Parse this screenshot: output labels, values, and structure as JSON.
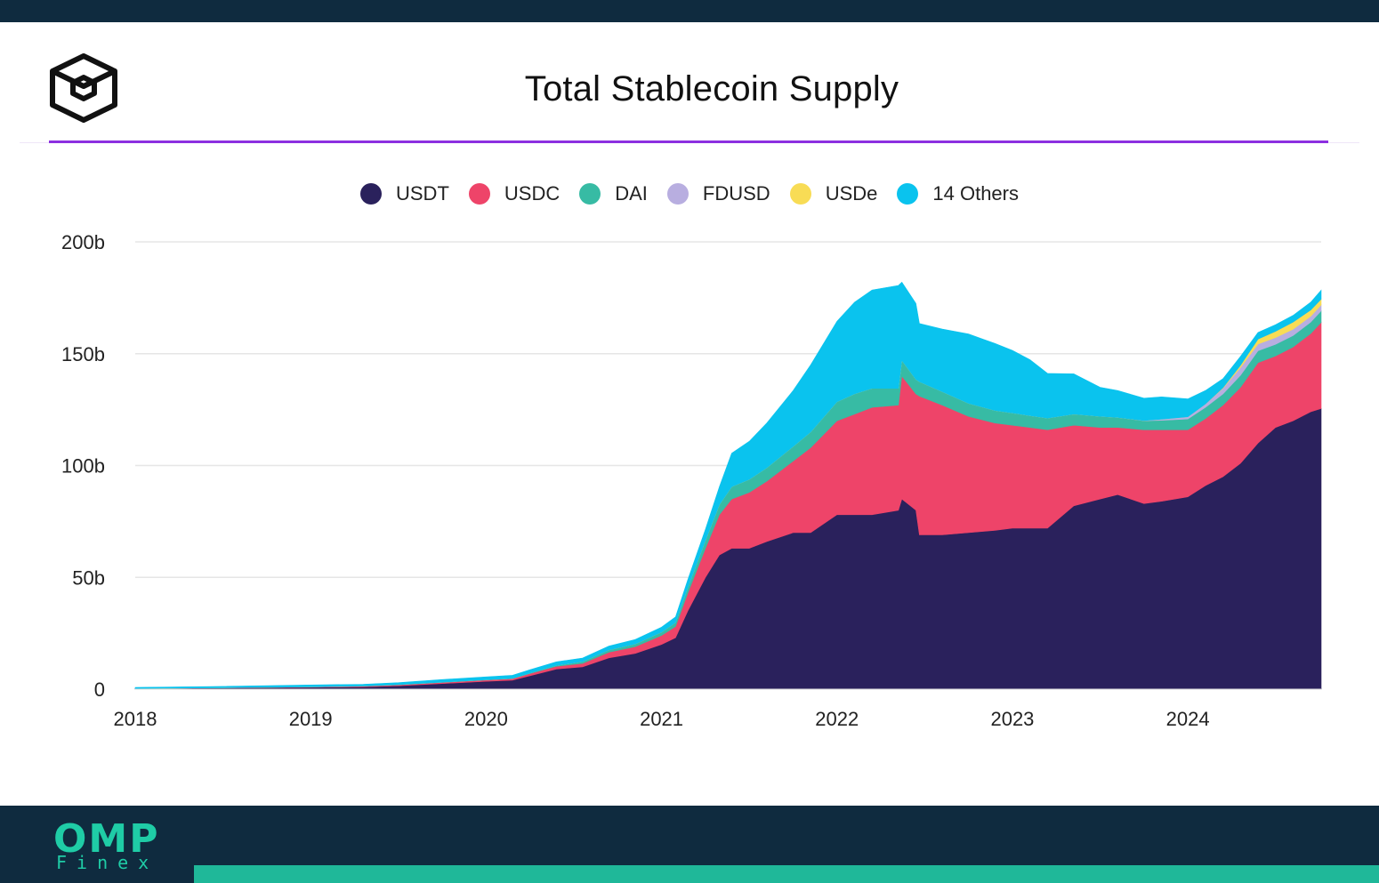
{
  "header": {
    "title": "Total Stablecoin Supply",
    "logo_icon": "cube-logo-icon"
  },
  "colors": {
    "USDT": "#2a215c",
    "USDC": "#ee4469",
    "DAI": "#37bba4",
    "FDUSD": "#b8aee0",
    "USDe": "#f8dc55",
    "14 Others": "#0ac3ee",
    "accent": "#8c2fe0",
    "footer_bg": "#0f2b3f",
    "footer_accent": "#1fb899"
  },
  "legend": [
    {
      "label": "USDT",
      "color": "#2a215c"
    },
    {
      "label": "USDC",
      "color": "#ee4469"
    },
    {
      "label": "DAI",
      "color": "#37bba4"
    },
    {
      "label": "FDUSD",
      "color": "#b8aee0"
    },
    {
      "label": "USDe",
      "color": "#f8dc55"
    },
    {
      "label": "14 Others",
      "color": "#0ac3ee"
    }
  ],
  "chart_data": {
    "type": "area",
    "title": "Total Stablecoin Supply",
    "stacked": true,
    "xlabel": "",
    "ylabel": "",
    "xlim": [
      2018.0,
      2024.76
    ],
    "ylim": [
      0,
      200
    ],
    "y_unit": "b (billions USD)",
    "x_ticks": [
      2018,
      2019,
      2020,
      2021,
      2022,
      2023,
      2024
    ],
    "x_tick_labels": [
      "2018",
      "2019",
      "2020",
      "2021",
      "2022",
      "2023",
      "2024"
    ],
    "y_ticks": [
      0,
      50,
      100,
      150,
      200
    ],
    "y_tick_labels": [
      "0",
      "50b",
      "100b",
      "150b",
      "200b"
    ],
    "grid": true,
    "legend_position": "top-center",
    "x": [
      2018.0,
      2018.5,
      2019.0,
      2019.3,
      2019.5,
      2019.75,
      2020.0,
      2020.15,
      2020.25,
      2020.4,
      2020.55,
      2020.7,
      2020.85,
      2021.0,
      2021.08,
      2021.15,
      2021.25,
      2021.33,
      2021.4,
      2021.5,
      2021.6,
      2021.75,
      2021.85,
      2022.0,
      2022.1,
      2022.2,
      2022.35,
      2022.37,
      2022.45,
      2022.47,
      2022.6,
      2022.75,
      2022.9,
      2023.0,
      2023.1,
      2023.2,
      2023.35,
      2023.5,
      2023.6,
      2023.75,
      2023.85,
      2024.0,
      2024.1,
      2024.2,
      2024.3,
      2024.4,
      2024.5,
      2024.6,
      2024.7,
      2024.76
    ],
    "series": [
      {
        "name": "USDT",
        "values": [
          0.3,
          0.5,
          0.8,
          1.0,
          1.5,
          2.5,
          3.5,
          4.0,
          6.0,
          9.0,
          10.0,
          14.0,
          16.0,
          20.0,
          23.0,
          35.0,
          50.0,
          60.0,
          63.0,
          63.0,
          66.0,
          70.0,
          70.0,
          78.0,
          78.0,
          78.0,
          80.0,
          85.0,
          80.0,
          69.0,
          69.0,
          70.0,
          71.0,
          72.0,
          72.0,
          72.0,
          82.0,
          85.0,
          87.0,
          83.0,
          84.0,
          86.0,
          91.0,
          95.0,
          101.0,
          110.0,
          117.0,
          120.0,
          124.0,
          125.5
        ]
      },
      {
        "name": "USDC",
        "values": [
          0.0,
          0.1,
          0.2,
          0.3,
          0.4,
          0.5,
          0.6,
          0.7,
          1.0,
          1.2,
          1.5,
          2.5,
          3.0,
          4.0,
          5.0,
          8.0,
          13.0,
          18.0,
          22.0,
          25.0,
          27.0,
          32.0,
          38.0,
          42.0,
          45.0,
          48.0,
          47.0,
          55.0,
          52.0,
          62.0,
          58.0,
          52.0,
          48.0,
          46.0,
          45.0,
          44.0,
          36.0,
          32.0,
          30.0,
          33.0,
          32.0,
          30.0,
          30.0,
          32.0,
          34.0,
          36.0,
          32.0,
          33.0,
          35.0,
          38.5
        ]
      },
      {
        "name": "DAI",
        "values": [
          0.0,
          0.05,
          0.05,
          0.1,
          0.1,
          0.1,
          0.1,
          0.1,
          0.2,
          0.4,
          0.8,
          1.0,
          1.2,
          1.5,
          1.8,
          2.5,
          3.5,
          4.5,
          5.5,
          5.8,
          6.0,
          6.5,
          7.0,
          8.5,
          9.0,
          8.5,
          7.5,
          7.0,
          6.5,
          6.5,
          6.0,
          5.8,
          5.6,
          5.5,
          5.3,
          5.2,
          5.0,
          5.0,
          4.5,
          4.0,
          4.2,
          4.8,
          5.0,
          5.0,
          5.3,
          5.3,
          5.2,
          5.1,
          5.1,
          5.2
        ]
      },
      {
        "name": "FDUSD",
        "values": [
          0,
          0,
          0,
          0,
          0,
          0,
          0,
          0,
          0,
          0,
          0,
          0,
          0,
          0,
          0,
          0,
          0,
          0,
          0,
          0,
          0,
          0,
          0,
          0,
          0,
          0,
          0,
          0,
          0,
          0,
          0,
          0,
          0,
          0,
          0,
          0,
          0,
          0,
          0,
          0.1,
          0.5,
          1.0,
          1.5,
          2.5,
          3.5,
          3.0,
          3.0,
          2.8,
          2.6,
          2.6
        ]
      },
      {
        "name": "USDe",
        "values": [
          0,
          0,
          0,
          0,
          0,
          0,
          0,
          0,
          0,
          0,
          0,
          0,
          0,
          0,
          0,
          0,
          0,
          0,
          0,
          0,
          0,
          0,
          0,
          0,
          0,
          0,
          0,
          0,
          0,
          0,
          0,
          0,
          0,
          0,
          0,
          0,
          0,
          0,
          0,
          0,
          0,
          0,
          0,
          0.3,
          1.0,
          2.2,
          2.8,
          3.2,
          2.8,
          2.6
        ]
      },
      {
        "name": "14 Others",
        "values": [
          0.5,
          0.6,
          0.8,
          0.8,
          0.9,
          1.2,
          1.3,
          1.4,
          1.5,
          1.6,
          1.6,
          1.8,
          2.0,
          2.2,
          2.5,
          3.5,
          5.0,
          8.0,
          15.0,
          17.0,
          20.0,
          25.0,
          30.0,
          36.0,
          41.0,
          44.0,
          46.0,
          35.0,
          34.0,
          26.0,
          28.0,
          31.0,
          30.0,
          28.0,
          25.0,
          20.0,
          18.0,
          13.0,
          12.0,
          10.0,
          10.0,
          8.0,
          6.0,
          4.0,
          4.0,
          3.0,
          3.0,
          3.0,
          3.5,
          4.0
        ]
      }
    ]
  }
}
